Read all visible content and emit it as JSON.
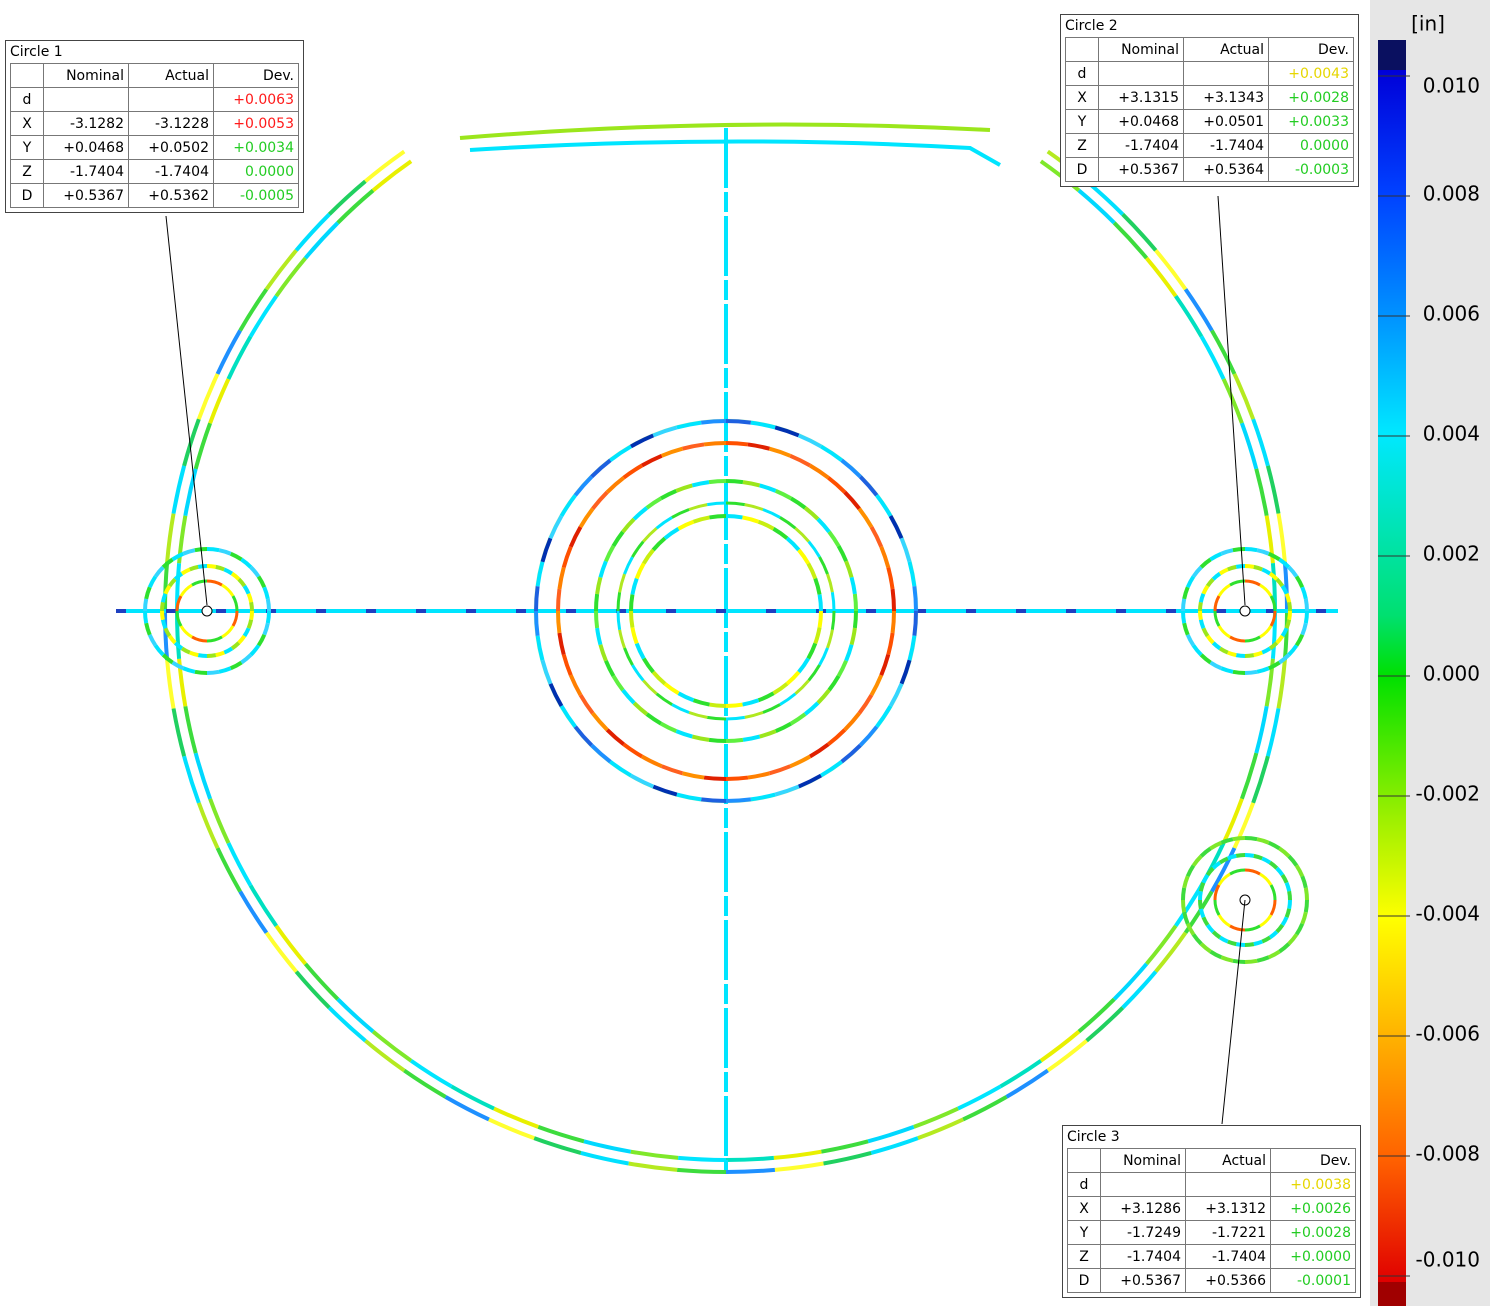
{
  "callouts": [
    {
      "title": "Circle 1",
      "columns": [
        "Nominal",
        "Actual",
        "Dev."
      ],
      "rows": [
        {
          "label": "d",
          "dev": "+0.0063",
          "dev_color": "#ff1a1a"
        },
        {
          "label": "X",
          "nominal": "-3.1282",
          "actual": "-3.1228",
          "dev": "+0.0053",
          "dev_color": "#ff1a1a"
        },
        {
          "label": "Y",
          "nominal": "+0.0468",
          "actual": "+0.0502",
          "dev": "+0.0034",
          "dev_color": "#22cc22"
        },
        {
          "label": "Z",
          "nominal": "-1.7404",
          "actual": "-1.7404",
          "dev": "0.0000",
          "dev_color": "#22cc22"
        },
        {
          "label": "D",
          "nominal": "+0.5367",
          "actual": "+0.5362",
          "dev": "-0.0005",
          "dev_color": "#22cc22"
        }
      ]
    },
    {
      "title": "Circle 2",
      "columns": [
        "Nominal",
        "Actual",
        "Dev."
      ],
      "rows": [
        {
          "label": "d",
          "dev": "+0.0043",
          "dev_color": "#e6d600"
        },
        {
          "label": "X",
          "nominal": "+3.1315",
          "actual": "+3.1343",
          "dev": "+0.0028",
          "dev_color": "#22cc22"
        },
        {
          "label": "Y",
          "nominal": "+0.0468",
          "actual": "+0.0501",
          "dev": "+0.0033",
          "dev_color": "#22cc22"
        },
        {
          "label": "Z",
          "nominal": "-1.7404",
          "actual": "-1.7404",
          "dev": "0.0000",
          "dev_color": "#22cc22"
        },
        {
          "label": "D",
          "nominal": "+0.5367",
          "actual": "+0.5364",
          "dev": "-0.0003",
          "dev_color": "#22cc22"
        }
      ]
    },
    {
      "title": "Circle 3",
      "columns": [
        "Nominal",
        "Actual",
        "Dev."
      ],
      "rows": [
        {
          "label": "d",
          "dev": "+0.0038",
          "dev_color": "#e6d600"
        },
        {
          "label": "X",
          "nominal": "+3.1286",
          "actual": "+3.1312",
          "dev": "+0.0026",
          "dev_color": "#22cc22"
        },
        {
          "label": "Y",
          "nominal": "-1.7249",
          "actual": "-1.7221",
          "dev": "+0.0028",
          "dev_color": "#22cc22"
        },
        {
          "label": "Z",
          "nominal": "-1.7404",
          "actual": "-1.7404",
          "dev": "+0.0000",
          "dev_color": "#22cc22"
        },
        {
          "label": "D",
          "nominal": "+0.5367",
          "actual": "+0.5366",
          "dev": "-0.0001",
          "dev_color": "#22cc22"
        }
      ]
    }
  ],
  "legend": {
    "unit": "[in]",
    "lim": [
      -0.01,
      0.01
    ],
    "ticks": [
      {
        "value": 0.01,
        "label": "0.010"
      },
      {
        "value": 0.008,
        "label": "0.008"
      },
      {
        "value": 0.006,
        "label": "0.006"
      },
      {
        "value": 0.004,
        "label": "0.004"
      },
      {
        "value": 0.002,
        "label": "0.002"
      },
      {
        "value": 0,
        "label": "0.000"
      },
      {
        "value": -0.002,
        "label": "-0.002"
      },
      {
        "value": -0.004,
        "label": "-0.004"
      },
      {
        "value": -0.006,
        "label": "-0.006"
      },
      {
        "value": -0.008,
        "label": "-0.008"
      },
      {
        "value": -0.01,
        "label": "-0.010"
      }
    ]
  }
}
